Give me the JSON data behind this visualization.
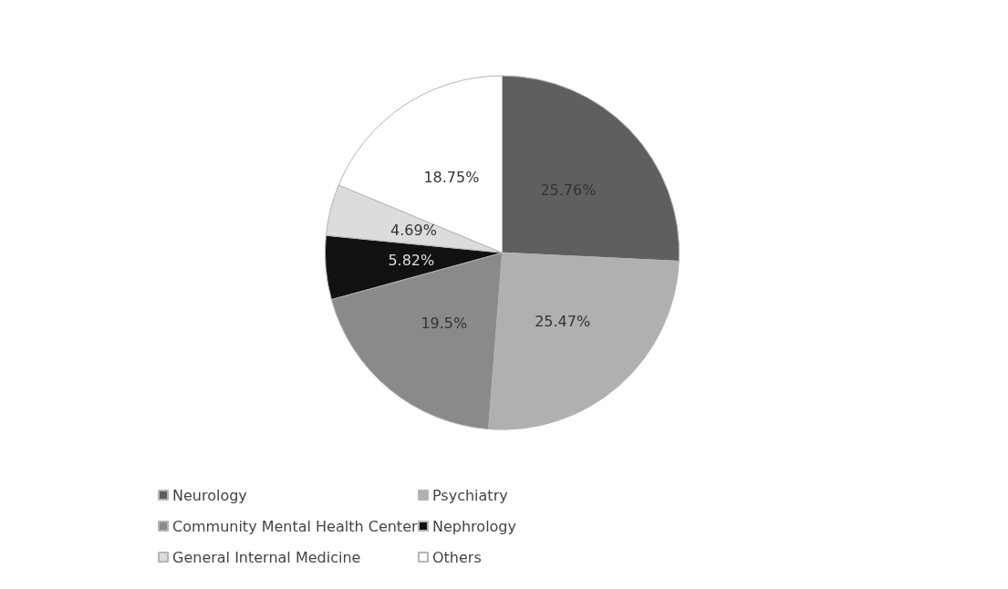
{
  "chart_data": {
    "type": "pie",
    "categories": [
      "Neurology",
      "Psychiatry",
      "Community Mental Health Center",
      "Nephrology",
      "General Internal Medicine",
      "Others"
    ],
    "values": [
      25.76,
      25.47,
      19.5,
      5.82,
      4.69,
      18.75
    ],
    "colors": [
      "#5f5f5f",
      "#b0b0b0",
      "#8a8a8a",
      "#111111",
      "#dcdcdc",
      "#ffffff"
    ],
    "value_labels": [
      "25.76%",
      "25.47%",
      "19.5%",
      "5.82%",
      "4.69%",
      "18.75%"
    ],
    "legend": "bottom"
  }
}
